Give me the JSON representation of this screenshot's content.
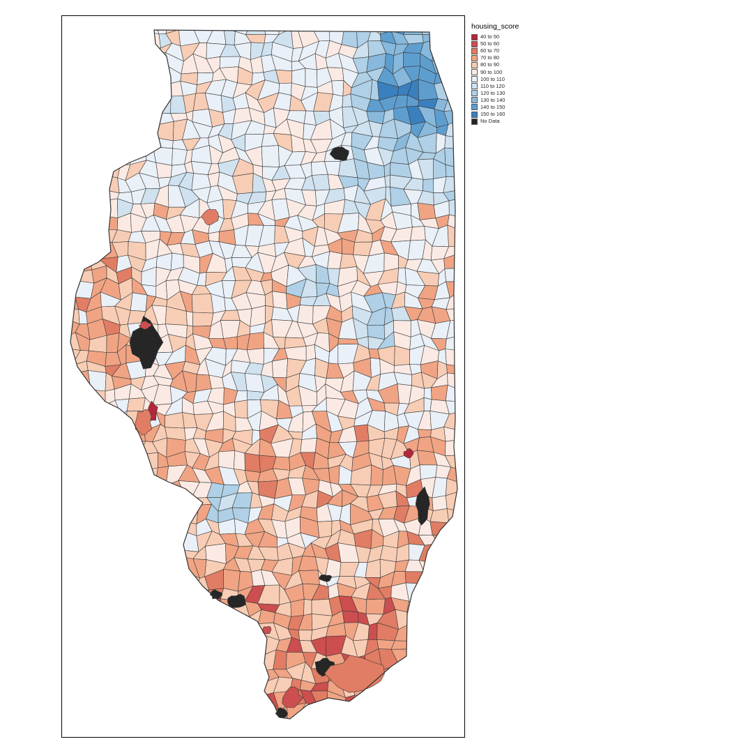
{
  "legend": {
    "title": "housing_score",
    "entries": [
      {
        "label": "40 to 50",
        "color": "#b2283a"
      },
      {
        "label": "50 to 60",
        "color": "#cc4e4e"
      },
      {
        "label": "60 to 70",
        "color": "#e07d64"
      },
      {
        "label": "70 to 80",
        "color": "#f0a484"
      },
      {
        "label": "80 to 90",
        "color": "#f8cdb5"
      },
      {
        "label": "90 to 100",
        "color": "#fbeae3"
      },
      {
        "label": "100 to 110",
        "color": "#eaf0f7"
      },
      {
        "label": "110 to 120",
        "color": "#d0e2ef"
      },
      {
        "label": "120 to 130",
        "color": "#afd0e6"
      },
      {
        "label": "130 to 140",
        "color": "#88b9dc"
      },
      {
        "label": "140 to 150",
        "color": "#5e9ecf"
      },
      {
        "label": "150 to 160",
        "color": "#3a7fbe"
      },
      {
        "label": "No Data",
        "color": "#262626"
      }
    ]
  },
  "map": {
    "region": "Illinois",
    "variable": "housing_score",
    "border_color": "#3a3a3a"
  }
}
